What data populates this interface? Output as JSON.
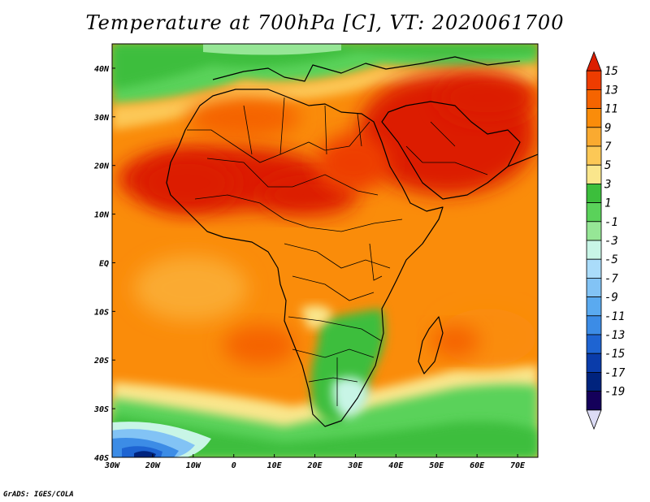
{
  "title": "Temperature at 700hPa [C], VT: 2020061700",
  "credit": "GrADS: IGES/COLA",
  "map": {
    "lon_range": [
      -30,
      75
    ],
    "lat_range": [
      -40,
      45
    ],
    "x_ticks": [
      {
        "lon": -30,
        "label": "30W"
      },
      {
        "lon": -20,
        "label": "20W"
      },
      {
        "lon": -10,
        "label": "10W"
      },
      {
        "lon": 0,
        "label": "0"
      },
      {
        "lon": 10,
        "label": "10E"
      },
      {
        "lon": 20,
        "label": "20E"
      },
      {
        "lon": 30,
        "label": "30E"
      },
      {
        "lon": 40,
        "label": "40E"
      },
      {
        "lon": 50,
        "label": "50E"
      },
      {
        "lon": 60,
        "label": "60E"
      },
      {
        "lon": 70,
        "label": "70E"
      }
    ],
    "y_ticks": [
      {
        "lat": 40,
        "label": "40N"
      },
      {
        "lat": 30,
        "label": "30N"
      },
      {
        "lat": 20,
        "label": "20N"
      },
      {
        "lat": 10,
        "label": "10N"
      },
      {
        "lat": 0,
        "label": "EQ"
      },
      {
        "lat": -10,
        "label": "10S"
      },
      {
        "lat": -20,
        "label": "20S"
      },
      {
        "lat": -30,
        "label": "30S"
      },
      {
        "lat": -40,
        "label": "40S"
      }
    ]
  },
  "colorbar": {
    "levels": [
      "15",
      "13",
      "11",
      "9",
      "7",
      "5",
      "3",
      "1",
      "-1",
      "-3",
      "-5",
      "-7",
      "-9",
      "-11",
      "-13",
      "-15",
      "-17",
      "-19"
    ],
    "colors": [
      "#dc1e00",
      "#ee3c00",
      "#f56400",
      "#fa8c0a",
      "#faaa30",
      "#fcc856",
      "#fae68c",
      "#3cbe3c",
      "#5ad25a",
      "#96e696",
      "#c8f5e6",
      "#aadcfa",
      "#82c3f5",
      "#5aaaf0",
      "#3c8ce6",
      "#1e64d2",
      "#0a3caa",
      "#00237d",
      "#14005a",
      "#dcdcf5"
    ]
  },
  "regions": [
    {
      "name": "sahara-sahel-core",
      "temp": 13,
      "lon": 4,
      "lat": 18,
      "rx": 24,
      "ry": 7
    },
    {
      "name": "arabia-core",
      "temp": 13,
      "lon": 50,
      "lat": 25,
      "rx": 18,
      "ry": 11
    },
    {
      "name": "west-africa-core",
      "temp": 13,
      "lon": -8,
      "lat": 18,
      "rx": 9,
      "ry": 6
    },
    {
      "name": "east-sahara",
      "temp": 11,
      "lon": 25,
      "lat": 20,
      "rx": 10,
      "ry": 7
    },
    {
      "name": "south-atlantic-warm",
      "temp": 9,
      "lon": 5,
      "lat": -17,
      "rx": 14,
      "ry": 6
    },
    {
      "name": "indian-ocean-warm",
      "temp": 9,
      "lon": 55,
      "lat": -15,
      "rx": 17,
      "ry": 8
    },
    {
      "name": "southern-africa-cool",
      "temp": 3,
      "lon": 30,
      "lat": -20,
      "rx": 7,
      "ry": 8
    },
    {
      "name": "lesotho-cold",
      "temp": -3,
      "lon": 28,
      "lat": -29,
      "rx": 2.5,
      "ry": 2
    },
    {
      "name": "southern-ocean-cold",
      "temp": -7,
      "lon": -10,
      "lat": -38,
      "rx": 18,
      "ry": 3
    }
  ]
}
